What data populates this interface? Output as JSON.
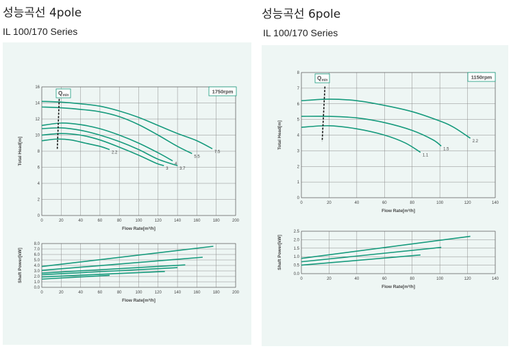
{
  "panels": [
    {
      "heading": "성능곡선 4pole",
      "series_title": "IL 100/170 Series",
      "rpm_label": "1750rpm",
      "qmin_label": "Q",
      "qmin_sub": "min",
      "head_chart": {
        "ylabel": "Total Head[m]",
        "xlabel": "Flow Rate[m³/h]",
        "xlim": [
          0,
          200
        ],
        "ylim": [
          0,
          16
        ],
        "xticks": [
          0,
          20,
          40,
          60,
          80,
          100,
          120,
          140,
          160,
          180,
          200
        ],
        "yticks": [
          0,
          2,
          4,
          6,
          8,
          10,
          12,
          14,
          16
        ],
        "curves": [
          {
            "label": "7.5",
            "points": [
              [
                0,
                14.2
              ],
              [
                20,
                14.1
              ],
              [
                40,
                13.9
              ],
              [
                60,
                13.6
              ],
              [
                80,
                13.0
              ],
              [
                100,
                12.2
              ],
              [
                120,
                11.2
              ],
              [
                140,
                10.2
              ],
              [
                160,
                9.3
              ],
              [
                176,
                8.3
              ]
            ]
          },
          {
            "label": "5.5",
            "points": [
              [
                0,
                13.5
              ],
              [
                20,
                13.4
              ],
              [
                40,
                13.2
              ],
              [
                60,
                12.9
              ],
              [
                80,
                12.3
              ],
              [
                100,
                11.3
              ],
              [
                120,
                10.0
              ],
              [
                140,
                8.6
              ],
              [
                155,
                7.7
              ]
            ]
          },
          {
            "label": "4",
            "points": [
              [
                0,
                11.2
              ],
              [
                20,
                11.5
              ],
              [
                40,
                11.3
              ],
              [
                60,
                10.8
              ],
              [
                80,
                10.0
              ],
              [
                100,
                9.0
              ],
              [
                120,
                7.8
              ],
              [
                135,
                6.8
              ]
            ]
          },
          {
            "label": "3.7",
            "points": [
              [
                0,
                10.8
              ],
              [
                20,
                10.9
              ],
              [
                40,
                10.6
              ],
              [
                60,
                10.0
              ],
              [
                80,
                9.2
              ],
              [
                100,
                8.2
              ],
              [
                120,
                7.0
              ],
              [
                140,
                6.2
              ]
            ]
          },
          {
            "label": "3",
            "points": [
              [
                0,
                10.0
              ],
              [
                20,
                10.2
              ],
              [
                40,
                10.0
              ],
              [
                60,
                9.4
              ],
              [
                80,
                8.5
              ],
              [
                100,
                7.5
              ],
              [
                118,
                6.5
              ],
              [
                126,
                6.2
              ]
            ]
          },
          {
            "label": "2.2",
            "points": [
              [
                0,
                9.3
              ],
              [
                15,
                9.5
              ],
              [
                30,
                9.4
              ],
              [
                45,
                9.0
              ],
              [
                60,
                8.6
              ],
              [
                70,
                8.2
              ]
            ]
          }
        ],
        "qmin": [
          [
            18,
            14.5
          ],
          [
            16,
            8.3
          ]
        ]
      },
      "power_chart": {
        "ylabel": "Shaft Power[kW]",
        "xlabel": "Flow Rate[m³/h]",
        "xlim": [
          0,
          200
        ],
        "ylim": [
          0,
          8
        ],
        "xticks": [
          0,
          20,
          40,
          60,
          80,
          100,
          120,
          140,
          160,
          180,
          200
        ],
        "yticks": [
          "0.0",
          "1.0",
          "2.0",
          "3.0",
          "4.0",
          "5.0",
          "6.0",
          "7.0",
          "8.0"
        ],
        "lines": [
          [
            [
              0,
              3.8
            ],
            [
              177,
              7.5
            ]
          ],
          [
            [
              0,
              3.1
            ],
            [
              166,
              5.5
            ]
          ],
          [
            [
              0,
              2.6
            ],
            [
              148,
              4.1
            ]
          ],
          [
            [
              0,
              2.3
            ],
            [
              140,
              3.6
            ]
          ],
          [
            [
              0,
              1.9
            ],
            [
              127,
              2.9
            ]
          ],
          [
            [
              0,
              1.5
            ],
            [
              70,
              2.2
            ]
          ]
        ]
      }
    },
    {
      "heading": "성능곡선 6pole",
      "series_title": "IL 100/170 Series",
      "rpm_label": "1150rpm",
      "qmin_label": "Q",
      "qmin_sub": "min",
      "head_chart": {
        "ylabel": "Total Head[m]",
        "xlabel": "Flow Rate[m³/h]",
        "xlim": [
          0,
          140
        ],
        "ylim": [
          0,
          8
        ],
        "xticks": [
          0,
          20,
          40,
          60,
          80,
          100,
          120,
          140
        ],
        "yticks": [
          0,
          1,
          2,
          3,
          4,
          5,
          6,
          7,
          8
        ],
        "curves": [
          {
            "label": "2.2",
            "points": [
              [
                0,
                6.2
              ],
              [
                20,
                6.3
              ],
              [
                40,
                6.2
              ],
              [
                60,
                5.9
              ],
              [
                80,
                5.5
              ],
              [
                100,
                4.9
              ],
              [
                110,
                4.5
              ],
              [
                122,
                3.8
              ]
            ]
          },
          {
            "label": "1.5",
            "points": [
              [
                0,
                5.2
              ],
              [
                20,
                5.2
              ],
              [
                40,
                5.1
              ],
              [
                60,
                4.8
              ],
              [
                80,
                4.3
              ],
              [
                95,
                3.7
              ],
              [
                101,
                3.3
              ]
            ]
          },
          {
            "label": "1.1",
            "points": [
              [
                0,
                4.5
              ],
              [
                20,
                4.6
              ],
              [
                40,
                4.4
              ],
              [
                60,
                4.0
              ],
              [
                75,
                3.5
              ],
              [
                86,
                2.9
              ]
            ]
          }
        ],
        "qmin": [
          [
            17,
            7.1
          ],
          [
            15,
            3.6
          ]
        ]
      },
      "power_chart": {
        "ylabel": "Shaft Power[kW]",
        "xlabel": "Flow Rate[m³/h]",
        "xlim": [
          0,
          140
        ],
        "ylim": [
          0,
          2.5
        ],
        "xticks": [
          0,
          20,
          40,
          60,
          80,
          100,
          120,
          140
        ],
        "yticks": [
          "0.0",
          "0.5",
          "1.0",
          "1.5",
          "2.0",
          "2.5"
        ],
        "lines": [
          [
            [
              0,
              0.9
            ],
            [
              122,
              2.2
            ]
          ],
          [
            [
              0,
              0.7
            ],
            [
              101,
              1.55
            ]
          ],
          [
            [
              0,
              0.5
            ],
            [
              86,
              1.1
            ]
          ]
        ]
      }
    }
  ],
  "colors": {
    "curve": "#159a7c",
    "grid": "#8a8a8a",
    "panel": "#eef6f4"
  }
}
